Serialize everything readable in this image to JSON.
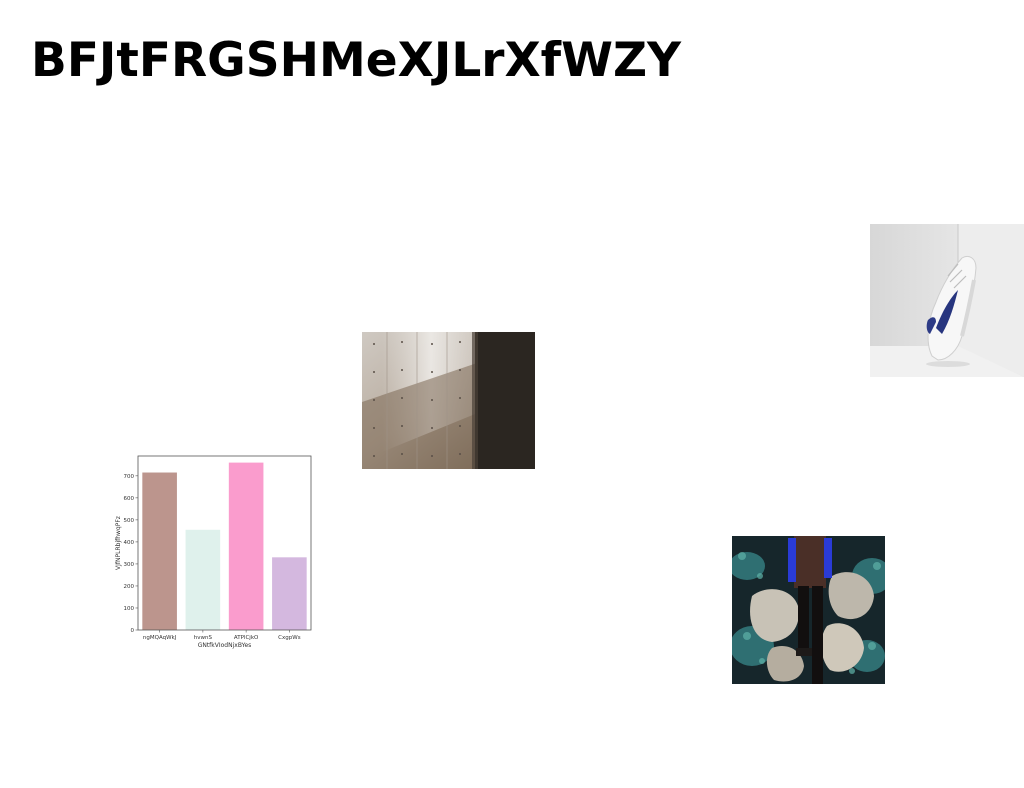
{
  "title": "BFJtFRGSHMeXJLrXfWZY",
  "images": [
    {
      "name": "textured-wall-photo",
      "subject": "concrete wall with light and shadow"
    },
    {
      "name": "sneaker-photo",
      "subject": "white sneaker with blue stripe against white wall"
    },
    {
      "name": "hiker-photo",
      "subject": "person walking on rocks among plants"
    }
  ],
  "chart_data": {
    "type": "bar",
    "categories": [
      "ngMQAqWkJ",
      "hvwnS",
      "ATPlCjkO",
      "CxgpWs"
    ],
    "values": [
      715,
      455,
      760,
      330
    ],
    "colors": [
      "#bc958d",
      "#dff1ec",
      "#fa9ccd",
      "#d4b8df"
    ],
    "xlabel": "GNtfkVIodNjxBYes",
    "ylabel": "VJfNPLRbjfhwqPFz",
    "ylim": [
      0,
      790
    ],
    "yticks": [
      0,
      100,
      200,
      300,
      400,
      500,
      600,
      700
    ],
    "grid": false
  }
}
